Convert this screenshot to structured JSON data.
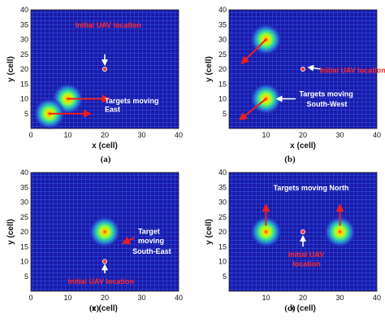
{
  "colors": {
    "background_grid": "#1a1aa8",
    "grid_line": "#3b6bff",
    "arrow_red": "#ee1c1c",
    "text_red": "#ff2a2a",
    "text_white": "#ffffff",
    "uav_marker": "#ff3030"
  },
  "chart_data": [
    {
      "panel": "(a)",
      "type": "heatmap",
      "xlabel": "x (cell)",
      "ylabel": "y (cell)",
      "xlim": [
        0,
        40
      ],
      "ylim": [
        0,
        40
      ],
      "xticks": [
        "0",
        "10",
        "20",
        "30",
        "40"
      ],
      "yticks": [
        "5",
        "10",
        "15",
        "20",
        "25",
        "30",
        "35",
        "40"
      ],
      "targets": [
        {
          "x": 10,
          "y": 10
        },
        {
          "x": 5,
          "y": 5
        }
      ],
      "uav": {
        "x": 20,
        "y": 20
      },
      "arrows": [
        {
          "from": [
            10,
            10
          ],
          "to": [
            21,
            10
          ],
          "color": "red"
        },
        {
          "from": [
            5,
            5
          ],
          "to": [
            16,
            5
          ],
          "color": "red"
        },
        {
          "from": [
            20,
            25
          ],
          "to": [
            20,
            21.5
          ],
          "color": "white"
        }
      ],
      "annotations": [
        {
          "text": "Initial UAV location",
          "x": 12,
          "y": 34,
          "color": "red"
        },
        {
          "text": "Targets moving",
          "x": 20,
          "y": 8.5,
          "color": "white"
        },
        {
          "text": "East",
          "x": 20,
          "y": 5.6,
          "color": "white"
        }
      ]
    },
    {
      "panel": "(b)",
      "type": "heatmap",
      "xlabel": "x (cell)",
      "ylabel": "y (cell)",
      "xlim": [
        0,
        40
      ],
      "ylim": [
        0,
        40
      ],
      "xticks": [
        "10",
        "20",
        "30",
        "40"
      ],
      "yticks": [
        "5",
        "10",
        "15",
        "20",
        "25",
        "30",
        "35",
        "40"
      ],
      "targets": [
        {
          "x": 10,
          "y": 30
        },
        {
          "x": 10,
          "y": 10
        }
      ],
      "uav": {
        "x": 20,
        "y": 20
      },
      "arrows": [
        {
          "from": [
            10,
            30
          ],
          "to": [
            3.5,
            22
          ],
          "color": "red"
        },
        {
          "from": [
            10,
            10
          ],
          "to": [
            3,
            3
          ],
          "color": "red"
        },
        {
          "from": [
            25,
            20
          ],
          "to": [
            21.5,
            20.6
          ],
          "color": "white"
        },
        {
          "from": [
            18,
            10
          ],
          "to": [
            13,
            10
          ],
          "color": "white"
        }
      ],
      "annotations": [
        {
          "text": "Initial UAV location",
          "x": 24.5,
          "y": 18.8,
          "color": "red"
        },
        {
          "text": "Targets moving",
          "x": 19,
          "y": 10.8,
          "color": "white"
        },
        {
          "text": "South-West",
          "x": 21,
          "y": 7.4,
          "color": "white"
        }
      ]
    },
    {
      "panel": "(c)",
      "type": "heatmap",
      "xlabel": "x (cell)",
      "ylabel": "y (cell)",
      "xlim": [
        0,
        40
      ],
      "ylim": [
        0,
        40
      ],
      "xticks": [
        "0",
        "10",
        "20",
        "30",
        "40"
      ],
      "yticks": [
        "5",
        "10",
        "15",
        "20",
        "25",
        "30",
        "35",
        "40"
      ],
      "targets": [
        {
          "x": 20,
          "y": 20
        }
      ],
      "uav": {
        "x": 20,
        "y": 10
      },
      "arrows": [
        {
          "from": [
            28,
            18
          ],
          "to": [
            25,
            16.2
          ],
          "color": "red"
        },
        {
          "from": [
            20,
            6
          ],
          "to": [
            20,
            8.8
          ],
          "color": "white"
        }
      ],
      "annotations": [
        {
          "text": "Target",
          "x": 29,
          "y": 19.3,
          "color": "white"
        },
        {
          "text": "moving",
          "x": 29,
          "y": 16.2,
          "color": "white"
        },
        {
          "text": "South-East",
          "x": 27.5,
          "y": 12.6,
          "color": "white"
        },
        {
          "text": "Initial UAV location",
          "x": 10,
          "y": 2.4,
          "color": "red"
        }
      ]
    },
    {
      "panel": "(d)",
      "type": "heatmap",
      "xlabel": "x (cell)",
      "ylabel": "y (cell)",
      "xlim": [
        0,
        40
      ],
      "ylim": [
        0,
        40
      ],
      "xticks": [
        "10",
        "20",
        "30",
        "40"
      ],
      "yticks": [
        "5",
        "10",
        "15",
        "20",
        "25",
        "30",
        "35",
        "40"
      ],
      "targets": [
        {
          "x": 10,
          "y": 20
        },
        {
          "x": 30,
          "y": 20
        }
      ],
      "uav": {
        "x": 20,
        "y": 20
      },
      "arrows": [
        {
          "from": [
            10,
            22
          ],
          "to": [
            10,
            29
          ],
          "color": "red"
        },
        {
          "from": [
            30,
            22
          ],
          "to": [
            30,
            29
          ],
          "color": "red"
        },
        {
          "from": [
            20,
            15
          ],
          "to": [
            20,
            18.5
          ],
          "color": "white"
        }
      ],
      "annotations": [
        {
          "text": "Targets moving North",
          "x": 12,
          "y": 34,
          "color": "white"
        },
        {
          "text": "Initial UAV",
          "x": 16,
          "y": 11.5,
          "color": "red"
        },
        {
          "text": "location",
          "x": 17.2,
          "y": 8.4,
          "color": "red"
        }
      ]
    }
  ]
}
